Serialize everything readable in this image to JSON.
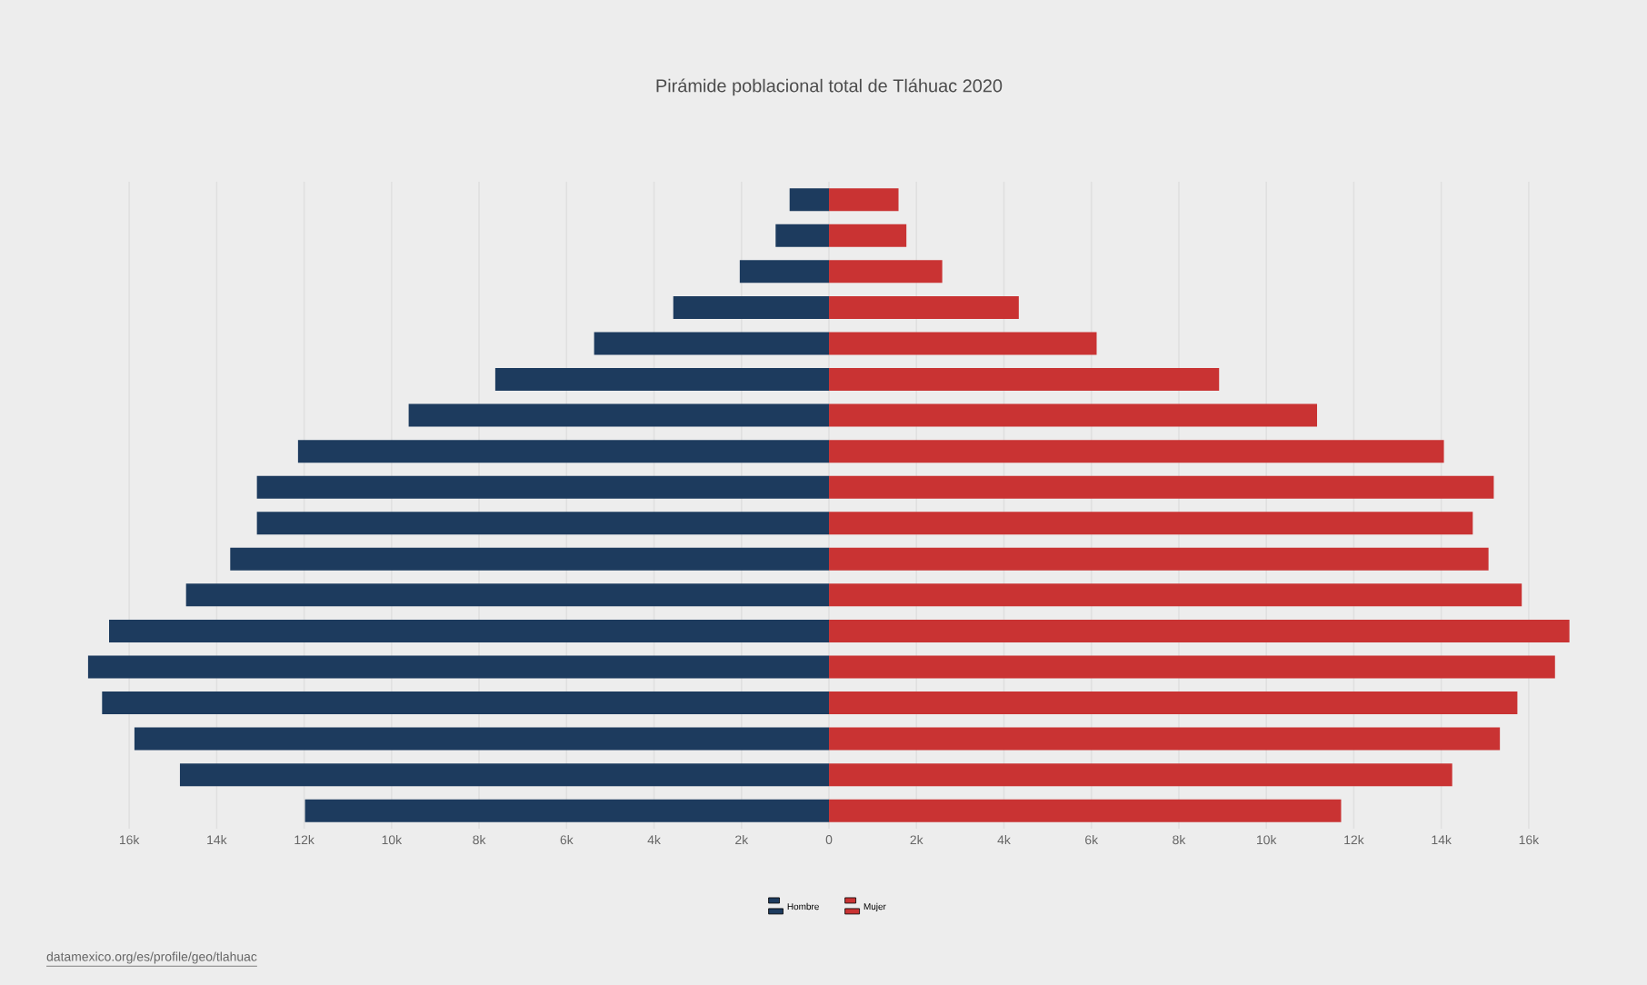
{
  "chart_data": {
    "type": "bar",
    "orientation": "horizontal",
    "stacked": true,
    "title": "Pirámide poblacional total de Tláhuac 2020",
    "categories": [
      null,
      null,
      null,
      null,
      null,
      null,
      null,
      null,
      null,
      null,
      null,
      null,
      null,
      null,
      null,
      null,
      null,
      null
    ],
    "series": [
      {
        "name": "Hombre",
        "color": "#1d3b5e",
        "values": [
          -900,
          -1220,
          -2040,
          -3560,
          -5370,
          -7630,
          -9610,
          -12140,
          -13080,
          -13080,
          -13690,
          -14700,
          -16460,
          -16940,
          -16620,
          -15880,
          -14840,
          -11980
        ]
      },
      {
        "name": "Mujer",
        "color": "#c93333",
        "values": [
          1590,
          1770,
          2590,
          4340,
          6120,
          8920,
          11160,
          14060,
          15200,
          14720,
          15080,
          15840,
          16930,
          16600,
          15740,
          15340,
          14250,
          11710
        ]
      }
    ],
    "xlim": [
      -17000,
      17000
    ],
    "xticks": [
      {
        "value": -16000,
        "label": "16k"
      },
      {
        "value": -14000,
        "label": "14k"
      },
      {
        "value": -12000,
        "label": "12k"
      },
      {
        "value": -10000,
        "label": "10k"
      },
      {
        "value": -8000,
        "label": "8k"
      },
      {
        "value": -6000,
        "label": "6k"
      },
      {
        "value": -4000,
        "label": "4k"
      },
      {
        "value": -2000,
        "label": "2k"
      },
      0,
      {
        "value": 2000,
        "label": "2k"
      },
      {
        "value": 4000,
        "label": "4k"
      },
      {
        "value": 6000,
        "label": "6k"
      },
      {
        "value": 8000,
        "label": "8k"
      },
      {
        "value": 10000,
        "label": "10k"
      },
      {
        "value": 12000,
        "label": "12k"
      },
      {
        "value": 14000,
        "label": "14k"
      },
      {
        "value": 16000,
        "label": "16k"
      }
    ],
    "grid": "x",
    "legend": "bottom",
    "annotations": [
      "datamexico.org/es/profile/geo/tlahuac"
    ]
  }
}
